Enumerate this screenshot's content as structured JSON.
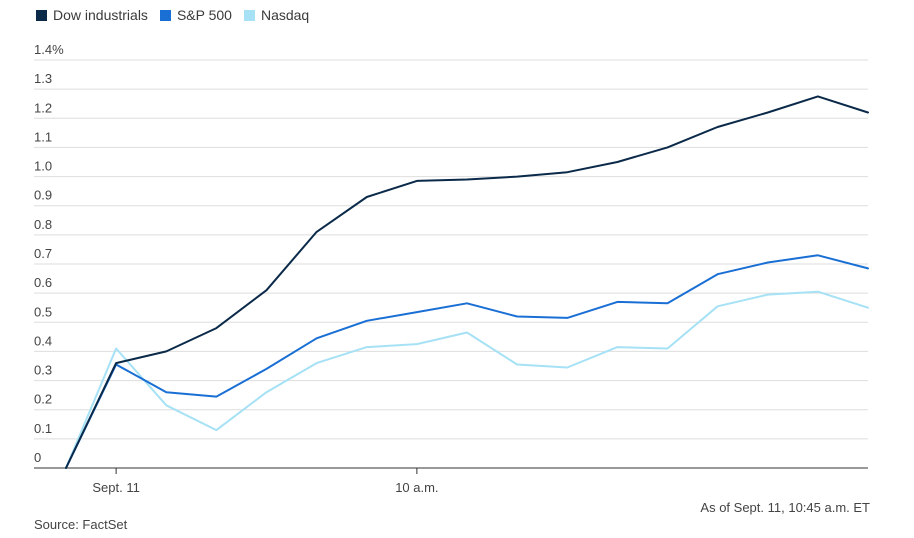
{
  "legend": [
    {
      "label": "Dow industrials",
      "color": "#0b2a4a"
    },
    {
      "label": "S&P 500",
      "color": "#1a6fd4"
    },
    {
      "label": "Nasdaq",
      "color": "#a6e1f5"
    }
  ],
  "notes": {
    "as_of": "As of Sept. 11, 10:45 a.m. ET",
    "source": "Source: FactSet"
  },
  "chart_data": {
    "type": "line",
    "title": "",
    "xlabel": "",
    "ylabel": "",
    "ylim": [
      0,
      1.4
    ],
    "y_ticks": [
      {
        "value": 0,
        "label": "0"
      },
      {
        "value": 0.1,
        "label": "0.1"
      },
      {
        "value": 0.2,
        "label": "0.2"
      },
      {
        "value": 0.3,
        "label": "0.3"
      },
      {
        "value": 0.4,
        "label": "0.4"
      },
      {
        "value": 0.5,
        "label": "0.5"
      },
      {
        "value": 0.6,
        "label": "0.6"
      },
      {
        "value": 0.7,
        "label": "0.7"
      },
      {
        "value": 0.8,
        "label": "0.8"
      },
      {
        "value": 0.9,
        "label": "0.9"
      },
      {
        "value": 1.0,
        "label": "1.0"
      },
      {
        "value": 1.1,
        "label": "1.1"
      },
      {
        "value": 1.2,
        "label": "1.2"
      },
      {
        "value": 1.3,
        "label": "1.3"
      },
      {
        "value": 1.4,
        "label": "1.4%"
      }
    ],
    "x_ticks": [
      {
        "index": 1,
        "label": "Sept. 11"
      },
      {
        "index": 7,
        "label": "10 a.m."
      }
    ],
    "grid": true,
    "legend_position": "top-left",
    "series": [
      {
        "name": "Dow industrials",
        "color": "#0b2a4a",
        "values": [
          0,
          0.36,
          0.4,
          0.48,
          0.61,
          0.81,
          0.93,
          0.985,
          0.99,
          1.0,
          1.015,
          1.05,
          1.1,
          1.17,
          1.22,
          1.275,
          1.22
        ]
      },
      {
        "name": "S&P 500",
        "color": "#1a6fd4",
        "values": [
          0,
          0.355,
          0.26,
          0.245,
          0.34,
          0.445,
          0.505,
          0.535,
          0.565,
          0.52,
          0.515,
          0.57,
          0.565,
          0.665,
          0.705,
          0.73,
          0.685
        ]
      },
      {
        "name": "Nasdaq",
        "color": "#a6e1f5",
        "values": [
          0,
          0.41,
          0.215,
          0.13,
          0.26,
          0.36,
          0.415,
          0.425,
          0.465,
          0.355,
          0.345,
          0.415,
          0.41,
          0.555,
          0.595,
          0.605,
          0.55
        ]
      }
    ]
  }
}
